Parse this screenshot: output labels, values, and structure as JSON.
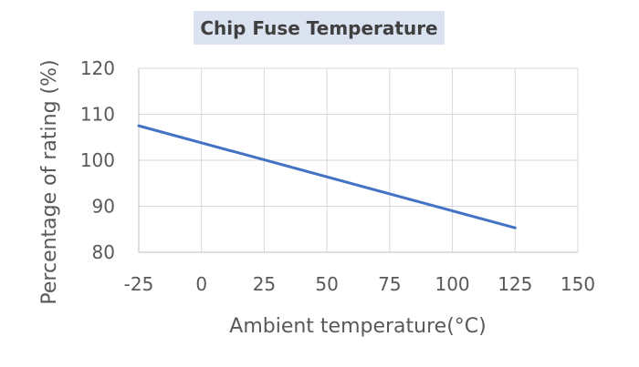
{
  "chart_data": {
    "type": "line",
    "title": "Chip Fuse Temperature",
    "xlabel": "Ambient temperature(°C)",
    "ylabel": "Percentage of rating (%)",
    "xlim": [
      -25,
      150
    ],
    "ylim": [
      80,
      120
    ],
    "x_ticks": [
      "-25",
      "0",
      "25",
      "50",
      "75",
      "100",
      "125",
      "150"
    ],
    "y_ticks": [
      "80",
      "90",
      "100",
      "110",
      "120"
    ],
    "grid": true,
    "legend": "none",
    "series": [
      {
        "color": "#4472c4",
        "points": [
          {
            "x": -25,
            "y": 107.5
          },
          {
            "x": 125,
            "y": 85.3
          }
        ]
      }
    ]
  },
  "colors": {
    "series": "#4472c4",
    "title_background": "#dbe3f0",
    "grid": "#d9d9d9"
  }
}
